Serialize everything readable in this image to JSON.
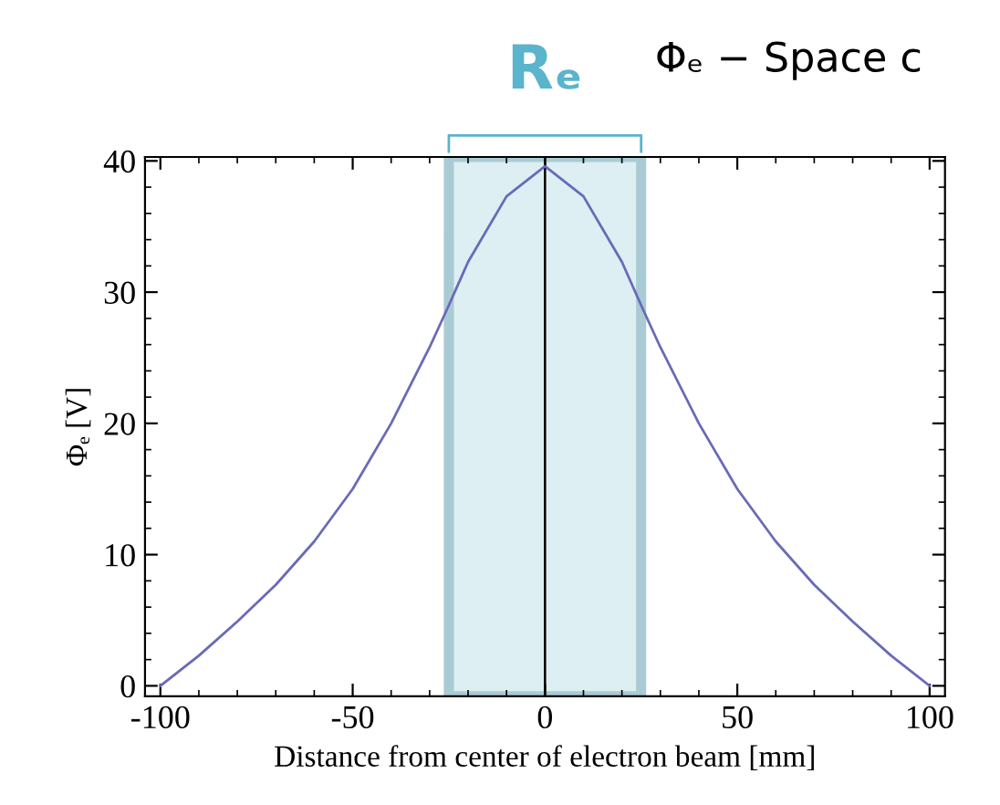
{
  "chart_data": {
    "type": "line",
    "title": "Φₑ − Space c",
    "xlabel": "Distance from center of electron beam [mm]",
    "ylabel": "Φₑ [V]",
    "x": [
      -100,
      -90,
      -80,
      -70,
      -60,
      -50,
      -40,
      -30,
      -25,
      -20,
      -10,
      0,
      10,
      20,
      25,
      30,
      40,
      50,
      60,
      70,
      80,
      90,
      100
    ],
    "series": [
      {
        "color": "#6a6ab8",
        "values": [
          0,
          2.3,
          4.9,
          7.7,
          11.0,
          15.0,
          20.0,
          25.8,
          29.0,
          32.3,
          37.3,
          39.6,
          37.3,
          32.3,
          29.0,
          25.8,
          20.0,
          15.0,
          11.0,
          7.7,
          4.9,
          2.3,
          0
        ]
      }
    ],
    "xlim": [
      -104,
      104
    ],
    "ylim": [
      -0.8,
      40.3
    ],
    "xticks": [
      -100,
      -50,
      0,
      50,
      100
    ],
    "yticks": [
      0,
      10,
      20,
      30,
      40
    ],
    "bands": [
      {
        "axis": "x",
        "from": -25,
        "to": 25,
        "label": "Rₑ",
        "color": "#ddeff3"
      }
    ],
    "ref_lines": [
      {
        "axis": "x",
        "value": 0,
        "color": "#000000"
      }
    ],
    "grid": false,
    "legend": false,
    "marker": "none",
    "line_style": "solid"
  }
}
